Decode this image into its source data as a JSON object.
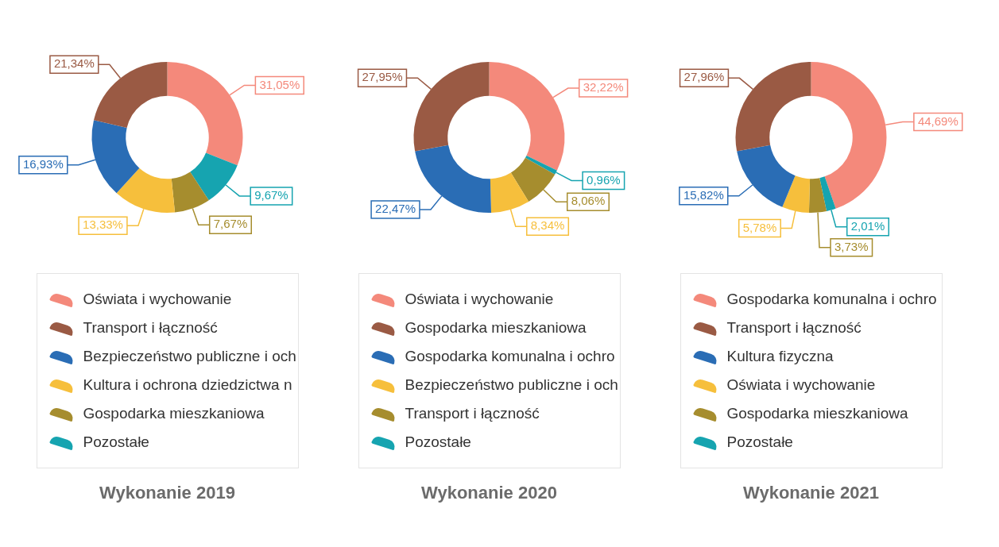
{
  "chart_data": [
    {
      "type": "donut",
      "title": "Wykonanie 2019",
      "legend": "bottom",
      "categories": [
        "Oświata i wychowanie",
        "Transport i łączność",
        "Bezpieczeństwo publiczne i och",
        "Kultura i ochrona dziedzictwa n",
        "Gospodarka mieszkaniowa",
        "Pozostałe"
      ],
      "values": [
        31.05,
        21.34,
        16.93,
        13.33,
        7.67,
        9.67
      ],
      "value_labels": [
        "31,05%",
        "21,34%",
        "16,93%",
        "13,33%",
        "7,67%",
        "9,67%"
      ],
      "colors": [
        "#f4897b",
        "#9a5a44",
        "#2a6db5",
        "#f6bf3c",
        "#a68d2e",
        "#16a4b0"
      ]
    },
    {
      "type": "donut",
      "title": "Wykonanie 2020",
      "legend": "bottom",
      "categories": [
        "Oświata i wychowanie",
        "Gospodarka mieszkaniowa",
        "Gospodarka komunalna i ochro",
        "Bezpieczeństwo publiczne i och",
        "Transport i łączność",
        "Pozostałe"
      ],
      "values": [
        32.22,
        27.95,
        22.47,
        8.34,
        8.06,
        0.96
      ],
      "value_labels": [
        "32,22%",
        "27,95%",
        "22,47%",
        "8,34%",
        "8,06%",
        "0,96%"
      ],
      "colors": [
        "#f4897b",
        "#9a5a44",
        "#2a6db5",
        "#f6bf3c",
        "#a68d2e",
        "#16a4b0"
      ]
    },
    {
      "type": "donut",
      "title": "Wykonanie 2021",
      "legend": "bottom",
      "categories": [
        "Gospodarka komunalna i ochro",
        "Transport i łączność",
        "Kultura fizyczna",
        "Oświata i wychowanie",
        "Gospodarka mieszkaniowa",
        "Pozostałe"
      ],
      "values": [
        44.69,
        27.96,
        15.82,
        5.78,
        3.73,
        2.01
      ],
      "value_labels": [
        "44,69%",
        "27,96%",
        "15,82%",
        "5,78%",
        "3,73%",
        "2,01%"
      ],
      "colors": [
        "#f4897b",
        "#9a5a44",
        "#2a6db5",
        "#f6bf3c",
        "#a68d2e",
        "#16a4b0"
      ]
    }
  ]
}
